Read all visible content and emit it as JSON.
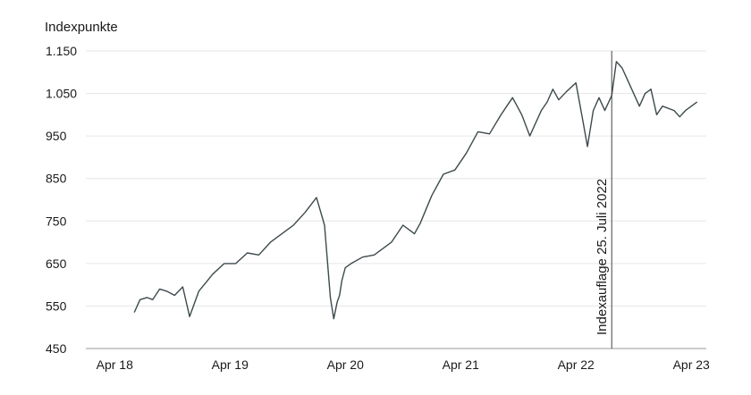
{
  "chart_data": {
    "type": "line",
    "ylabel": "Indexpunkte",
    "ylim": [
      450,
      1150
    ],
    "y_ticks": [
      {
        "value": 1150,
        "label": "1.150"
      },
      {
        "value": 1050,
        "label": "1.050"
      },
      {
        "value": 950,
        "label": "950"
      },
      {
        "value": 850,
        "label": "850"
      },
      {
        "value": 750,
        "label": "750"
      },
      {
        "value": 650,
        "label": "650"
      },
      {
        "value": 550,
        "label": "550"
      },
      {
        "value": 450,
        "label": "450"
      }
    ],
    "x_ticks": [
      {
        "value": 2018.25,
        "label": "Apr 18"
      },
      {
        "value": 2019.25,
        "label": "Apr 19"
      },
      {
        "value": 2020.25,
        "label": "Apr 20"
      },
      {
        "value": 2021.25,
        "label": "Apr 21"
      },
      {
        "value": 2022.25,
        "label": "Apr 22"
      },
      {
        "value": 2023.25,
        "label": "Apr 23"
      }
    ],
    "grid": true,
    "series_color": "#3d4a4c",
    "annotation": {
      "x": 2022.56,
      "label": "Indexauflage 25. Juli 2022"
    },
    "series": [
      {
        "x": [
          2018.42,
          2018.47,
          2018.53,
          2018.58,
          2018.64,
          2018.7,
          2018.77,
          2018.84,
          2018.9,
          2018.98,
          2019.04,
          2019.1,
          2019.2,
          2019.3,
          2019.4,
          2019.5,
          2019.6,
          2019.7,
          2019.8,
          2019.9,
          2020.0,
          2020.07,
          2020.12,
          2020.15,
          2020.18,
          2020.2,
          2020.22,
          2020.25,
          2020.3,
          2020.4,
          2020.5,
          2020.6,
          2020.65,
          2020.75,
          2020.85,
          2020.9,
          2021.0,
          2021.1,
          2021.2,
          2021.3,
          2021.4,
          2021.5,
          2021.6,
          2021.65,
          2021.7,
          2021.78,
          2021.85,
          2021.95,
          2022.0,
          2022.05,
          2022.1,
          2022.17,
          2022.25,
          2022.3,
          2022.35,
          2022.4,
          2022.45,
          2022.5,
          2022.56,
          2022.6,
          2022.65,
          2022.7,
          2022.8,
          2022.85,
          2022.9,
          2022.95,
          2023.0,
          2023.1,
          2023.15,
          2023.2,
          2023.3
        ],
        "y": [
          535,
          565,
          570,
          565,
          590,
          585,
          575,
          595,
          525,
          585,
          605,
          625,
          650,
          650,
          675,
          670,
          700,
          720,
          740,
          770,
          805,
          740,
          570,
          520,
          560,
          575,
          610,
          640,
          650,
          665,
          670,
          690,
          700,
          740,
          720,
          745,
          810,
          860,
          870,
          910,
          960,
          955,
          1000,
          1020,
          1040,
          1000,
          950,
          1010,
          1030,
          1060,
          1035,
          1055,
          1075,
          1000,
          925,
          1010,
          1040,
          1010,
          1045,
          1125,
          1110,
          1080,
          1020,
          1050,
          1060,
          1000,
          1020,
          1010,
          995,
          1010,
          1030
        ]
      }
    ]
  }
}
